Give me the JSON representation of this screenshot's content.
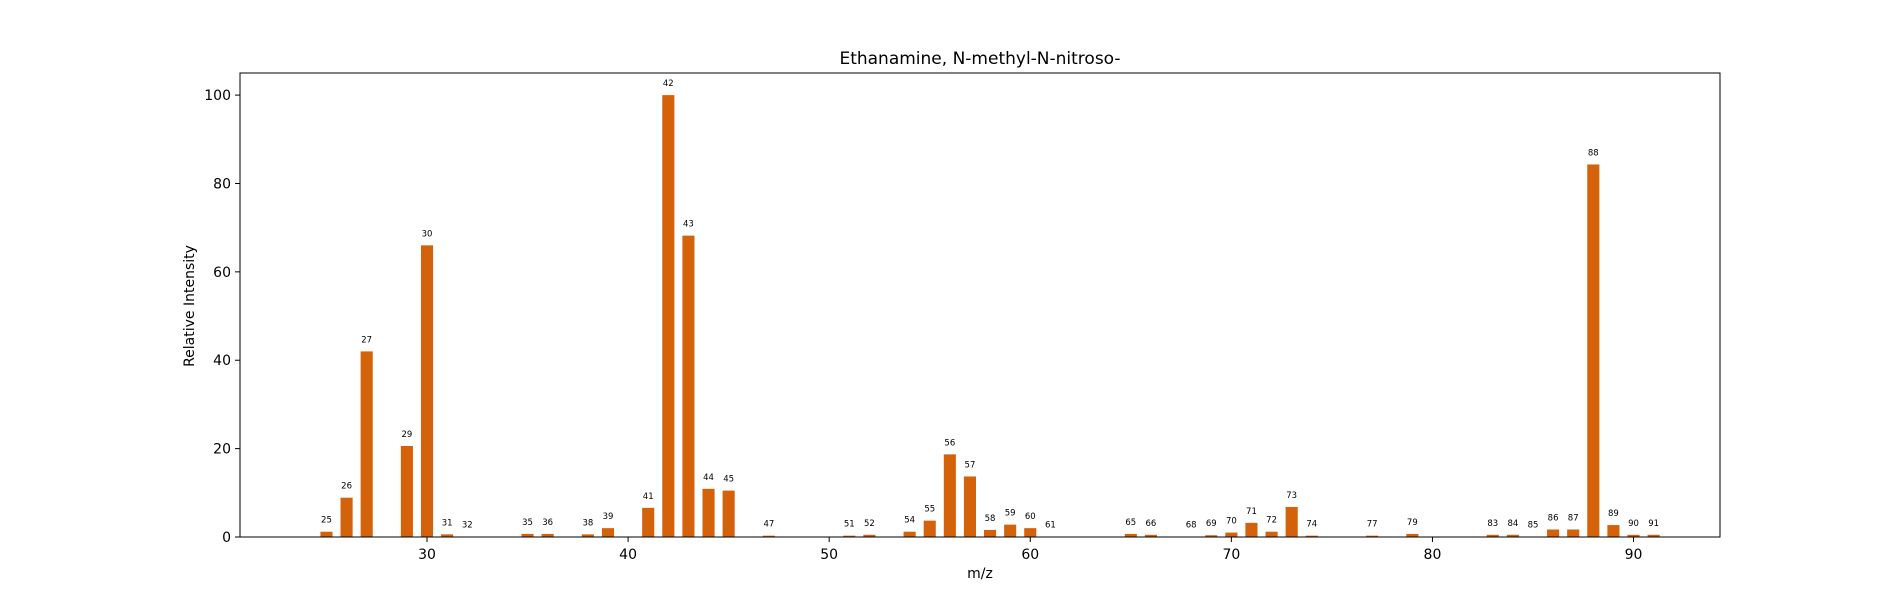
{
  "chart_data": {
    "type": "bar",
    "title": "Ethanamine, N-methyl-N-nitroso-",
    "xlabel": "m/z",
    "ylabel": "Relative Intensity",
    "xlim": [
      20.7,
      94.3
    ],
    "ylim": [
      0,
      105
    ],
    "xticks": [
      30,
      40,
      50,
      60,
      70,
      80,
      90
    ],
    "yticks": [
      0,
      20,
      40,
      60,
      80,
      100
    ],
    "grid": false,
    "bar_color": "#d4620b",
    "points": [
      {
        "x": 25,
        "y": 1.2
      },
      {
        "x": 26,
        "y": 8.9
      },
      {
        "x": 27,
        "y": 42.0
      },
      {
        "x": 29,
        "y": 20.6
      },
      {
        "x": 30,
        "y": 66.0
      },
      {
        "x": 31,
        "y": 0.6
      },
      {
        "x": 32,
        "y": 0.1
      },
      {
        "x": 35,
        "y": 0.7
      },
      {
        "x": 36,
        "y": 0.7
      },
      {
        "x": 38,
        "y": 0.6
      },
      {
        "x": 39,
        "y": 2.0
      },
      {
        "x": 41,
        "y": 6.6
      },
      {
        "x": 42,
        "y": 100.0
      },
      {
        "x": 43,
        "y": 68.2
      },
      {
        "x": 44,
        "y": 10.9
      },
      {
        "x": 45,
        "y": 10.5
      },
      {
        "x": 47,
        "y": 0.3
      },
      {
        "x": 51,
        "y": 0.3
      },
      {
        "x": 52,
        "y": 0.5
      },
      {
        "x": 54,
        "y": 1.2
      },
      {
        "x": 55,
        "y": 3.7
      },
      {
        "x": 56,
        "y": 18.7
      },
      {
        "x": 57,
        "y": 13.7
      },
      {
        "x": 58,
        "y": 1.6
      },
      {
        "x": 59,
        "y": 2.8
      },
      {
        "x": 60,
        "y": 2.0
      },
      {
        "x": 61,
        "y": 0.1
      },
      {
        "x": 65,
        "y": 0.7
      },
      {
        "x": 66,
        "y": 0.5
      },
      {
        "x": 68,
        "y": 0.1
      },
      {
        "x": 69,
        "y": 0.4
      },
      {
        "x": 70,
        "y": 1.0
      },
      {
        "x": 71,
        "y": 3.2
      },
      {
        "x": 72,
        "y": 1.2
      },
      {
        "x": 73,
        "y": 6.8
      },
      {
        "x": 74,
        "y": 0.3
      },
      {
        "x": 77,
        "y": 0.3
      },
      {
        "x": 79,
        "y": 0.7
      },
      {
        "x": 83,
        "y": 0.5
      },
      {
        "x": 84,
        "y": 0.5
      },
      {
        "x": 85,
        "y": 0.1
      },
      {
        "x": 86,
        "y": 1.7
      },
      {
        "x": 87,
        "y": 1.7
      },
      {
        "x": 88,
        "y": 84.3
      },
      {
        "x": 89,
        "y": 2.7
      },
      {
        "x": 90,
        "y": 0.5
      },
      {
        "x": 91,
        "y": 0.5
      }
    ]
  }
}
